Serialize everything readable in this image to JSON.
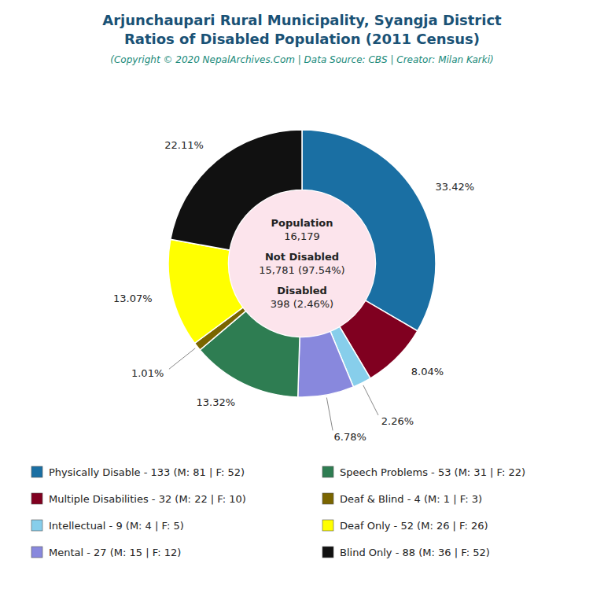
{
  "chart_data": {
    "type": "donut",
    "title": "Arjunchaupari Rural Municipality, Syangja District\nRatios of Disabled Population (2011 Census)",
    "subtitle": "(Copyright © 2020 NepalArchives.Com | Data Source: CBS | Creator: Milan Karki)",
    "annotations": [
      "Population",
      "16,179",
      "Not Disabled",
      "15,781 (97.54%)",
      "Disabled",
      "398 (2.46%)"
    ],
    "categories": [
      "Physically Disable - 133 (M: 81 | F: 52)",
      "Multiple Disabilities - 32 (M: 22 | F: 10)",
      "Intellectual - 9 (M: 4 | F: 5)",
      "Mental - 27 (M: 15 | F: 12)",
      "Speech Problems - 53 (M: 31 | F: 22)",
      "Deaf & Blind - 4 (M: 1 | F: 3)",
      "Deaf Only - 52 (M: 26 | F: 26)",
      "Blind Only - 88 (M: 36 | F: 52)"
    ],
    "values": [
      33.42,
      8.04,
      2.26,
      6.78,
      13.32,
      1.01,
      13.07,
      22.11
    ],
    "value_labels": [
      "33.42%",
      "8.04%",
      "2.26%",
      "6.78%",
      "13.32%",
      "1.01%",
      "13.07%",
      "22.11%"
    ],
    "colors": [
      "#1a6fa3",
      "#800020",
      "#87ceeb",
      "#8888dd",
      "#2e7d52",
      "#7a6500",
      "#ffff00",
      "#111111"
    ],
    "data_labels": true,
    "legend": "bottom"
  }
}
